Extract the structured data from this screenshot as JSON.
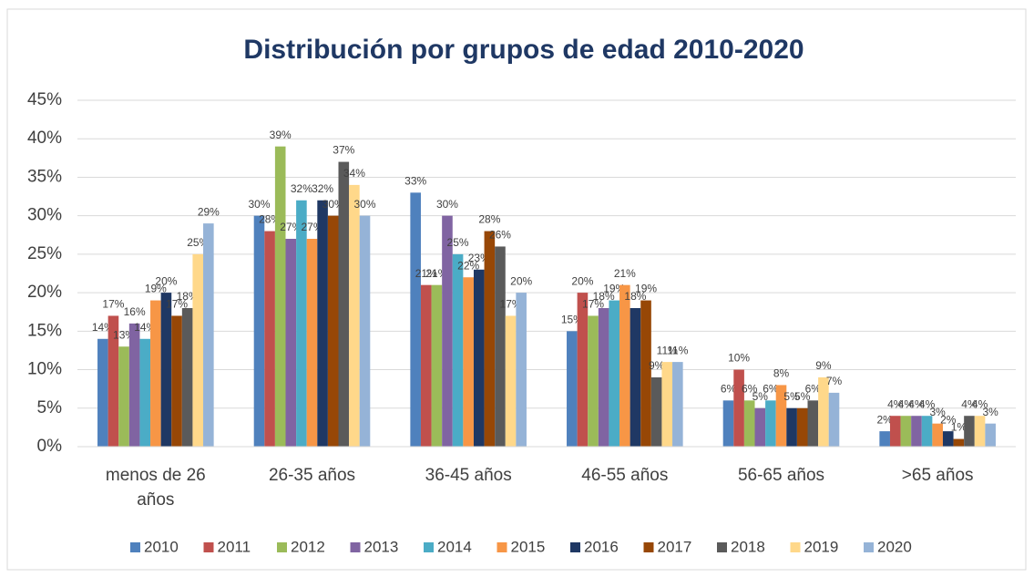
{
  "chart_data": {
    "type": "bar",
    "title": "Distribución por grupos de edad 2010-2020",
    "categories": [
      "menos de 26 años",
      "26-35 años",
      "36-45 años",
      "46-55 años",
      "56-65 años",
      ">65 años"
    ],
    "ylim": [
      0,
      45
    ],
    "yticks": [
      {
        "value": 0,
        "label": "0%"
      },
      {
        "value": 5,
        "label": "5%"
      },
      {
        "value": 10,
        "label": "10%"
      },
      {
        "value": 15,
        "label": "15%"
      },
      {
        "value": 20,
        "label": "20%"
      },
      {
        "value": 25,
        "label": "25%"
      },
      {
        "value": 30,
        "label": "30%"
      },
      {
        "value": 35,
        "label": "35%"
      },
      {
        "value": 40,
        "label": "40%"
      },
      {
        "value": 45,
        "label": "45%"
      }
    ],
    "grid": true,
    "legend": "bottom",
    "series": [
      {
        "name": "2010",
        "color": "#4f81bd",
        "values": [
          14,
          30,
          33,
          15,
          6,
          2
        ],
        "value_labels": [
          "14%",
          "30%",
          "33%",
          "15%",
          "6%",
          "2%"
        ]
      },
      {
        "name": "2011",
        "color": "#c0504d",
        "values": [
          17,
          28,
          21,
          20,
          10,
          4
        ],
        "value_labels": [
          "17%",
          "28%",
          "21%",
          "20%",
          "10%",
          "4%"
        ]
      },
      {
        "name": "2012",
        "color": "#9bbb59",
        "values": [
          13,
          39,
          21,
          17,
          6,
          4
        ],
        "value_labels": [
          "13%",
          "39%",
          "21%",
          "17%",
          "6%",
          "4%"
        ]
      },
      {
        "name": "2013",
        "color": "#8064a2",
        "values": [
          16,
          27,
          30,
          18,
          5,
          4
        ],
        "value_labels": [
          "16%",
          "27%",
          "30%",
          "18%",
          "5%",
          "4%"
        ]
      },
      {
        "name": "2014",
        "color": "#4bacc6",
        "values": [
          14,
          32,
          25,
          19,
          6,
          4
        ],
        "value_labels": [
          "14%",
          "32%",
          "25%",
          "19%",
          "6%",
          "4%"
        ]
      },
      {
        "name": "2015",
        "color": "#f79646",
        "values": [
          19,
          27,
          22,
          21,
          8,
          3
        ],
        "value_labels": [
          "19%",
          "27%",
          "22%",
          "21%",
          "8%",
          "3%"
        ]
      },
      {
        "name": "2016",
        "color": "#1f3864",
        "values": [
          20,
          32,
          23,
          18,
          5,
          2
        ],
        "value_labels": [
          "20%",
          "32%",
          "23%",
          "18%",
          "5%",
          "2%"
        ]
      },
      {
        "name": "2017",
        "color": "#974706",
        "values": [
          17,
          30,
          28,
          19,
          5,
          1
        ],
        "value_labels": [
          "17%",
          "30%",
          "28%",
          "19%",
          "5%",
          "1%"
        ]
      },
      {
        "name": "2018",
        "color": "#5a5a5a",
        "values": [
          18,
          37,
          26,
          9,
          6,
          4
        ],
        "value_labels": [
          "18%",
          "37%",
          "26%",
          "9%",
          "6%",
          "4%"
        ]
      },
      {
        "name": "2019",
        "color": "#ffd88a",
        "values": [
          25,
          34,
          17,
          11,
          9,
          4
        ],
        "value_labels": [
          "25%",
          "34%",
          "17%",
          "11%",
          "9%",
          "4%"
        ]
      },
      {
        "name": "2020",
        "color": "#95b3d7",
        "values": [
          29,
          30,
          20,
          11,
          7,
          3
        ],
        "value_labels": [
          "29%",
          "30%",
          "20%",
          "11%",
          "7%",
          "3%"
        ]
      }
    ]
  }
}
